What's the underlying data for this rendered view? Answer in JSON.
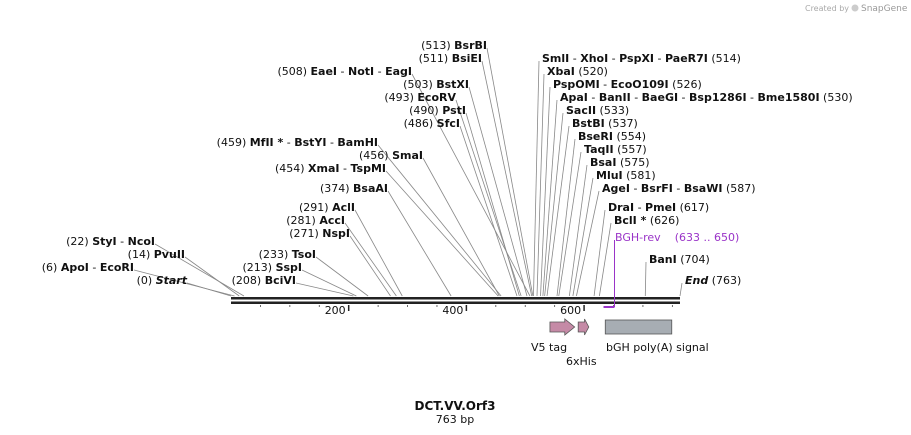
{
  "credit": {
    "prefix": "Created by",
    "brand": "SnapGene"
  },
  "map": {
    "name": "DCT.VV.Orf3",
    "length_label": "763 bp",
    "length_bp": 763,
    "ruler_ticks": [
      "200",
      "400",
      "600"
    ]
  },
  "sites": [
    {
      "pos": "(0)",
      "bp": 0,
      "names": [
        {
          "t": "Start",
          "i": true
        }
      ]
    },
    {
      "pos": "(6)",
      "bp": 6,
      "names": [
        {
          "t": "ApoI"
        },
        {
          "t": "EcoRI"
        }
      ]
    },
    {
      "pos": "(14)",
      "bp": 14,
      "names": [
        {
          "t": "PvuII"
        }
      ]
    },
    {
      "pos": "(22)",
      "bp": 22,
      "names": [
        {
          "t": "StyI"
        },
        {
          "t": "NcoI"
        }
      ]
    },
    {
      "pos": "(208)",
      "bp": 208,
      "names": [
        {
          "t": "BciVI"
        }
      ]
    },
    {
      "pos": "(213)",
      "bp": 213,
      "names": [
        {
          "t": "SspI"
        }
      ]
    },
    {
      "pos": "(233)",
      "bp": 233,
      "names": [
        {
          "t": "TsoI"
        }
      ]
    },
    {
      "pos": "(271)",
      "bp": 271,
      "names": [
        {
          "t": "NspI"
        }
      ]
    },
    {
      "pos": "(281)",
      "bp": 281,
      "names": [
        {
          "t": "AccI"
        }
      ]
    },
    {
      "pos": "(291)",
      "bp": 291,
      "names": [
        {
          "t": "AclI"
        }
      ]
    },
    {
      "pos": "(374)",
      "bp": 374,
      "names": [
        {
          "t": "BsaAI"
        }
      ]
    },
    {
      "pos": "(454)",
      "bp": 454,
      "names": [
        {
          "t": "XmaI"
        },
        {
          "t": "TspMI"
        }
      ]
    },
    {
      "pos": "(456)",
      "bp": 456,
      "names": [
        {
          "t": "SmaI"
        }
      ]
    },
    {
      "pos": "(459)",
      "bp": 459,
      "names": [
        {
          "t": "MfII *"
        },
        {
          "t": "BstYI"
        },
        {
          "t": "BamHI"
        }
      ]
    },
    {
      "pos": "(486)",
      "bp": 486,
      "names": [
        {
          "t": "SfcI"
        }
      ]
    },
    {
      "pos": "(490)",
      "bp": 490,
      "names": [
        {
          "t": "PstI"
        }
      ]
    },
    {
      "pos": "(493)",
      "bp": 493,
      "names": [
        {
          "t": "EcoRV"
        }
      ]
    },
    {
      "pos": "(503)",
      "bp": 503,
      "names": [
        {
          "t": "BstXI"
        }
      ]
    },
    {
      "pos": "(508)",
      "bp": 508,
      "names": [
        {
          "t": "EaeI"
        },
        {
          "t": "NotI"
        },
        {
          "t": "EagI"
        }
      ]
    },
    {
      "pos": "(511)",
      "bp": 511,
      "names": [
        {
          "t": "BsiEI"
        }
      ]
    },
    {
      "pos": "(513)",
      "bp": 513,
      "names": [
        {
          "t": "BsrBI"
        }
      ]
    },
    {
      "pos": "(514)",
      "bp": 514,
      "names": [
        {
          "t": "SmlI"
        },
        {
          "t": "XhoI"
        },
        {
          "t": "PspXI"
        },
        {
          "t": "PaeR7I"
        }
      ]
    },
    {
      "pos": "(520)",
      "bp": 520,
      "names": [
        {
          "t": "XbaI"
        }
      ]
    },
    {
      "pos": "(526)",
      "bp": 526,
      "names": [
        {
          "t": "PspOMI"
        },
        {
          "t": "EcoO109I"
        }
      ]
    },
    {
      "pos": "(530)",
      "bp": 530,
      "names": [
        {
          "t": "ApaI"
        },
        {
          "t": "BanII"
        },
        {
          "t": "BaeGI"
        },
        {
          "t": "Bsp1286I"
        },
        {
          "t": "Bme1580I"
        }
      ]
    },
    {
      "pos": "(533)",
      "bp": 533,
      "names": [
        {
          "t": "SacII"
        }
      ]
    },
    {
      "pos": "(537)",
      "bp": 537,
      "names": [
        {
          "t": "BstBI"
        }
      ]
    },
    {
      "pos": "(554)",
      "bp": 554,
      "names": [
        {
          "t": "BseRI"
        }
      ]
    },
    {
      "pos": "(557)",
      "bp": 557,
      "names": [
        {
          "t": "TaqII"
        }
      ]
    },
    {
      "pos": "(575)",
      "bp": 575,
      "names": [
        {
          "t": "BsaI"
        }
      ]
    },
    {
      "pos": "(581)",
      "bp": 581,
      "names": [
        {
          "t": "MluI"
        }
      ]
    },
    {
      "pos": "(587)",
      "bp": 587,
      "names": [
        {
          "t": "AgeI"
        },
        {
          "t": "BsrFI"
        },
        {
          "t": "BsaWI"
        }
      ]
    },
    {
      "pos": "(617)",
      "bp": 617,
      "names": [
        {
          "t": "DraI"
        },
        {
          "t": "PmeI"
        }
      ]
    },
    {
      "pos": "(626)",
      "bp": 626,
      "names": [
        {
          "t": "BclI *"
        }
      ]
    },
    {
      "pos": "(704)",
      "bp": 704,
      "names": [
        {
          "t": "BanI"
        }
      ]
    },
    {
      "pos": "(763)",
      "bp": 763,
      "names": [
        {
          "t": "End",
          "i": true
        }
      ]
    }
  ],
  "primer": {
    "name": "BGH-rev",
    "range": "(633 .. 650)",
    "start_bp": 633,
    "end_bp": 650,
    "color": "#9a34c8"
  },
  "features": [
    {
      "label": "V5 tag",
      "start_bp": 542,
      "end_bp": 584,
      "shape": "arrow",
      "color": "#c58aa6"
    },
    {
      "label": "6xHis",
      "start_bp": 590,
      "end_bp": 608,
      "shape": "arrow",
      "color": "#c58aa6"
    },
    {
      "label": "bGH poly(A) signal",
      "start_bp": 636,
      "end_bp": 749,
      "shape": "box",
      "color": "#a7adb3"
    }
  ]
}
